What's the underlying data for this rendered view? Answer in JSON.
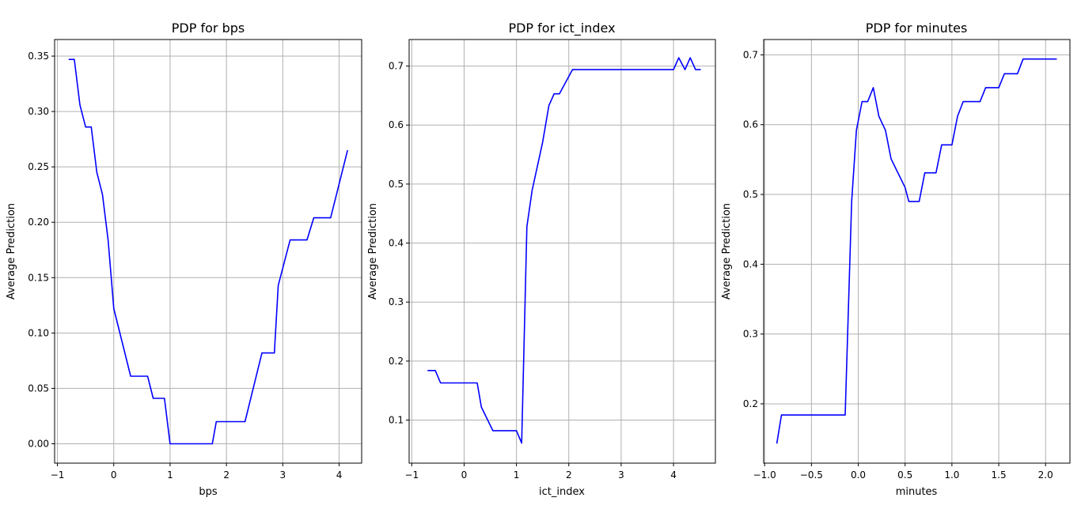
{
  "chart_data": [
    {
      "type": "line",
      "title": "PDP for bps",
      "xlabel": "bps",
      "ylabel": "Average Prediction",
      "grid": true,
      "line_color": "#0000ff",
      "xlim": [
        -1.05,
        4.4
      ],
      "ylim": [
        -0.0175,
        0.365
      ],
      "xticks": [
        -1,
        0,
        1,
        2,
        3,
        4
      ],
      "xtick_labels": [
        "−1",
        "0",
        "1",
        "2",
        "3",
        "4"
      ],
      "yticks": [
        0.0,
        0.05,
        0.1,
        0.15,
        0.2,
        0.25,
        0.3,
        0.35
      ],
      "ytick_labels": [
        "0.00",
        "0.05",
        "0.10",
        "0.15",
        "0.20",
        "0.25",
        "0.30",
        "0.35"
      ],
      "x": [
        -0.8,
        -0.7,
        -0.6,
        -0.5,
        -0.4,
        -0.3,
        -0.2,
        -0.1,
        0.0,
        0.3,
        0.6,
        0.7,
        0.9,
        1.0,
        1.75,
        1.82,
        2.33,
        2.63,
        2.85,
        2.92,
        3.13,
        3.43,
        3.55,
        3.85,
        4.15
      ],
      "y": [
        0.347,
        0.347,
        0.306,
        0.286,
        0.286,
        0.245,
        0.225,
        0.184,
        0.122,
        0.061,
        0.061,
        0.041,
        0.041,
        0.0,
        0.0,
        0.02,
        0.02,
        0.082,
        0.082,
        0.143,
        0.184,
        0.184,
        0.204,
        0.204,
        0.265
      ]
    },
    {
      "type": "line",
      "title": "PDP for ict_index",
      "xlabel": "ict_index",
      "ylabel": "Average Prediction",
      "grid": true,
      "line_color": "#0000ff",
      "xlim": [
        -1.05,
        4.8
      ],
      "ylim": [
        0.027,
        0.745
      ],
      "xticks": [
        -1,
        0,
        1,
        2,
        3,
        4
      ],
      "xtick_labels": [
        "−1",
        "0",
        "1",
        "2",
        "3",
        "4"
      ],
      "yticks": [
        0.1,
        0.2,
        0.3,
        0.4,
        0.5,
        0.6,
        0.7
      ],
      "ytick_labels": [
        "0.1",
        "0.2",
        "0.3",
        "0.4",
        "0.5",
        "0.6",
        "0.7"
      ],
      "x": [
        -0.7,
        -0.55,
        -0.45,
        0.25,
        0.33,
        0.55,
        1.0,
        1.1,
        1.2,
        1.3,
        1.5,
        1.62,
        1.72,
        1.82,
        2.07,
        4.0,
        4.1,
        4.22,
        4.32,
        4.42,
        4.52
      ],
      "y": [
        0.184,
        0.184,
        0.163,
        0.163,
        0.122,
        0.082,
        0.082,
        0.061,
        0.428,
        0.49,
        0.571,
        0.633,
        0.653,
        0.653,
        0.694,
        0.694,
        0.714,
        0.694,
        0.714,
        0.694,
        0.694
      ]
    },
    {
      "type": "line",
      "title": "PDP for minutes",
      "xlabel": "minutes",
      "ylabel": "Average Prediction",
      "grid": true,
      "line_color": "#0000ff",
      "xlim": [
        -1.01,
        2.26
      ],
      "ylim": [
        0.115,
        0.722
      ],
      "xticks": [
        -1.0,
        -0.5,
        0.0,
        0.5,
        1.0,
        1.5,
        2.0
      ],
      "xtick_labels": [
        "−1.0",
        "−0.5",
        "0.0",
        "0.5",
        "1.0",
        "1.5",
        "2.0"
      ],
      "yticks": [
        0.2,
        0.3,
        0.4,
        0.5,
        0.6,
        0.7
      ],
      "ytick_labels": [
        "0.2",
        "0.3",
        "0.4",
        "0.5",
        "0.6",
        "0.7"
      ],
      "x": [
        -0.87,
        -0.82,
        -0.14,
        -0.07,
        -0.02,
        0.04,
        0.1,
        0.16,
        0.22,
        0.29,
        0.35,
        0.5,
        0.54,
        0.65,
        0.71,
        0.83,
        0.89,
        1.0,
        1.06,
        1.12,
        1.3,
        1.36,
        1.5,
        1.56,
        1.7,
        1.76,
        2.12
      ],
      "y": [
        0.143,
        0.184,
        0.184,
        0.49,
        0.592,
        0.633,
        0.633,
        0.653,
        0.612,
        0.592,
        0.551,
        0.51,
        0.49,
        0.49,
        0.531,
        0.531,
        0.571,
        0.571,
        0.612,
        0.633,
        0.633,
        0.653,
        0.653,
        0.673,
        0.673,
        0.694,
        0.694
      ]
    }
  ]
}
